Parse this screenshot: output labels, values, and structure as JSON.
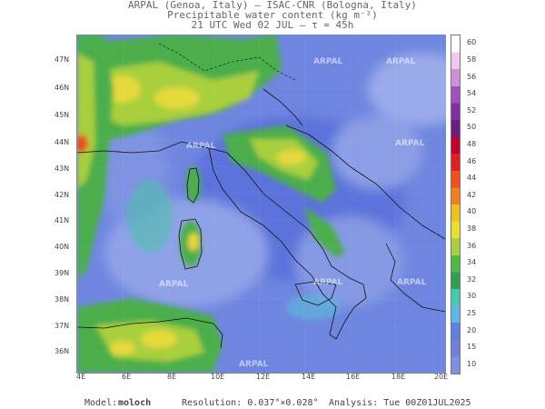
{
  "header": {
    "line1": "ARPAL (Genoa, Italy)  —  ISAC-CNR (Bologna, Italy)",
    "line2": "Precipitable water content (kg m⁻²)",
    "line3": "21 UTC Wed 02 JUL  —  τ = 45h"
  },
  "map": {
    "watermark": "ARPAL",
    "lat_labels": [
      "47N",
      "46N",
      "45N",
      "44N",
      "43N",
      "42N",
      "41N",
      "40N",
      "39N",
      "38N",
      "37N",
      "36N"
    ],
    "lon_labels": [
      "4E",
      "6E",
      "8E",
      "10E",
      "12E",
      "14E",
      "16E",
      "18E",
      "20E"
    ]
  },
  "colorbar": {
    "labels": [
      "60",
      "58",
      "56",
      "54",
      "52",
      "50",
      "48",
      "46",
      "44",
      "42",
      "40",
      "38",
      "36",
      "34",
      "32",
      "30",
      "25",
      "20",
      "15",
      "10"
    ],
    "colors": [
      "#ffffff",
      "#f0c8f0",
      "#d090d8",
      "#a050c0",
      "#8030a0",
      "#6a1f7f",
      "#c00030",
      "#e02020",
      "#f05020",
      "#f08020",
      "#f0c020",
      "#e8e030",
      "#a8d040",
      "#50b848",
      "#30a050",
      "#48c8b0",
      "#60b8e8",
      "#6080e0",
      "#7080d8",
      "#8090e0"
    ]
  },
  "footer": {
    "model_label": "Model:",
    "model_value": "moloch",
    "resolution": "Resolution: 0.037°×0.028°",
    "analysis": "Analysis: Tue 00Z01JUL2025"
  }
}
